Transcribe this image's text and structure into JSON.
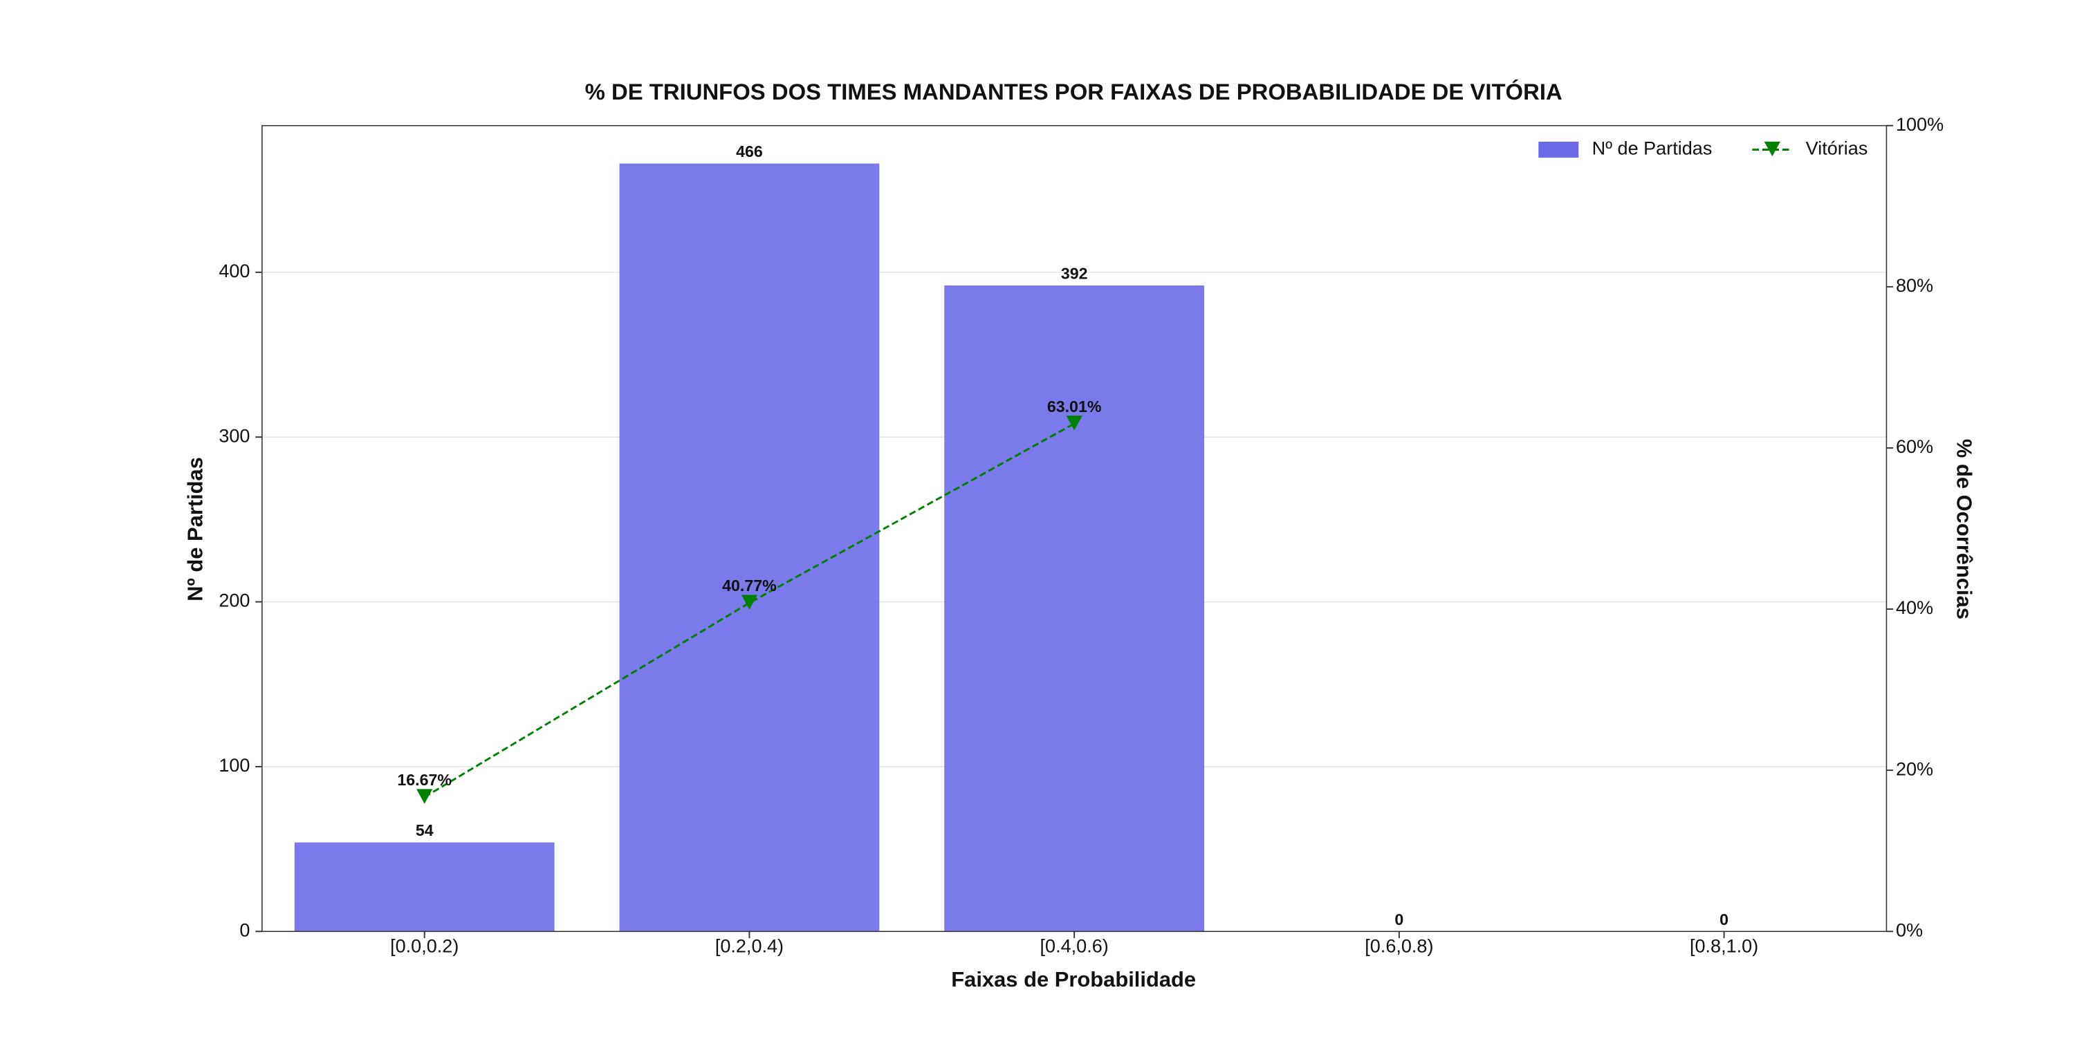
{
  "chart_data": {
    "type": "bar",
    "title": "% DE TRIUNFOS DOS TIMES MANDANTES POR FAIXAS DE PROBABILIDADE DE VITÓRIA",
    "xlabel": "Faixas de Probabilidade",
    "ylabel": "Nº de Partidas",
    "y2label": "% de Ocorrências",
    "categories": [
      "[0.0,0.2)",
      "[0.2,0.4)",
      "[0.4,0.6)",
      "[0.6,0.8)",
      "[0.8,1.0)"
    ],
    "series": [
      {
        "name": "Nº de Partidas",
        "type": "bar",
        "color": "#6b6be8",
        "values": [
          54,
          466,
          392,
          0,
          0
        ]
      },
      {
        "name": "Vitórias",
        "type": "line",
        "axis": "y2",
        "color": "#008000",
        "values": [
          16.67,
          40.77,
          63.01,
          null,
          null
        ],
        "value_labels": [
          "16.67%",
          "40.77%",
          "63.01%",
          null,
          null
        ]
      }
    ],
    "ylim": [
      0,
      489
    ],
    "yticks": [
      0,
      100,
      200,
      300,
      400
    ],
    "y2lim": [
      0,
      100
    ],
    "y2ticks": [
      {
        "value": 0,
        "label": "0%"
      },
      {
        "value": 20,
        "label": "20%"
      },
      {
        "value": 40,
        "label": "40%"
      },
      {
        "value": 60,
        "label": "60%"
      },
      {
        "value": 80,
        "label": "80%"
      },
      {
        "value": 100,
        "label": "100%"
      }
    ],
    "grid": true,
    "legend": "upper right"
  }
}
